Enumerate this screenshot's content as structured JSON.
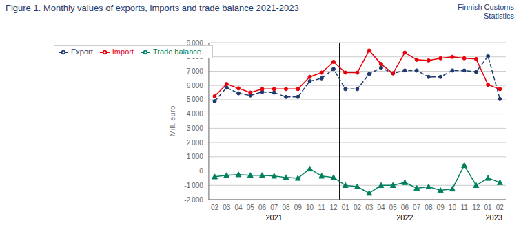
{
  "chart_data": {
    "type": "line",
    "title": "Figure 1. Monthly values of exports, imports and trade balance 2021-2023",
    "ylabel": "Mill. euro",
    "categories": [
      "02",
      "03",
      "04",
      "05",
      "06",
      "07",
      "08",
      "09",
      "10",
      "11",
      "12",
      "01",
      "02",
      "03",
      "04",
      "05",
      "06",
      "07",
      "08",
      "09",
      "10",
      "11",
      "12",
      "01",
      "02"
    ],
    "series": [
      {
        "name": "Export",
        "color": "#1F3A6E",
        "line_style": "dashed",
        "marker": "circle",
        "values": [
          4900,
          5850,
          5450,
          5300,
          5550,
          5500,
          5200,
          5200,
          6300,
          6500,
          7150,
          5750,
          5750,
          6800,
          7250,
          6850,
          7050,
          7050,
          6600,
          6600,
          7050,
          7050,
          6950,
          8050,
          5050
        ]
      },
      {
        "name": "Import",
        "color": "#E8000B",
        "line_style": "solid",
        "marker": "circle",
        "values": [
          5250,
          6100,
          5800,
          5500,
          5750,
          5750,
          5750,
          5750,
          6600,
          6900,
          7650,
          6900,
          6900,
          8450,
          7500,
          6850,
          8300,
          7800,
          7750,
          7900,
          8000,
          7900,
          7850,
          6050,
          5750
        ]
      },
      {
        "name": "Trade balance",
        "color": "#008060",
        "line_style": "solid",
        "marker": "triangle",
        "values": [
          -400,
          -300,
          -250,
          -300,
          -300,
          -350,
          -450,
          -500,
          150,
          -350,
          -450,
          -1000,
          -1100,
          -1550,
          -1000,
          -1000,
          -800,
          -1200,
          -1100,
          -1350,
          -1250,
          400,
          -1000,
          -500,
          -800
        ]
      }
    ],
    "ylim": [
      -2000,
      9000
    ],
    "yticks": [
      {
        "value": -2000,
        "label": "-2 000"
      },
      {
        "value": -1000,
        "label": "-1 000"
      },
      0,
      {
        "value": 1000,
        "label": "1 000"
      },
      {
        "value": 2000,
        "label": "2 000"
      },
      {
        "value": 3000,
        "label": "3 000"
      },
      {
        "value": 4000,
        "label": "4 000"
      },
      {
        "value": 5000,
        "label": "5 000"
      },
      {
        "value": 6000,
        "label": "6 000"
      },
      {
        "value": 7000,
        "label": "7 000"
      },
      {
        "value": 8000,
        "label": "8 000"
      },
      {
        "value": 9000,
        "label": "9 000"
      }
    ],
    "grid": true,
    "legend": "upper left",
    "annotations": [
      {
        "text": "Finnish Customs\nStatistics"
      },
      {
        "text": "2021",
        "x": 5.0
      },
      {
        "text": "2022",
        "x": 16.0
      },
      {
        "text": "2023",
        "x": 23.5
      },
      {
        "type": "line",
        "x": 10.5
      },
      {
        "type": "line",
        "x": 22.5
      }
    ]
  }
}
